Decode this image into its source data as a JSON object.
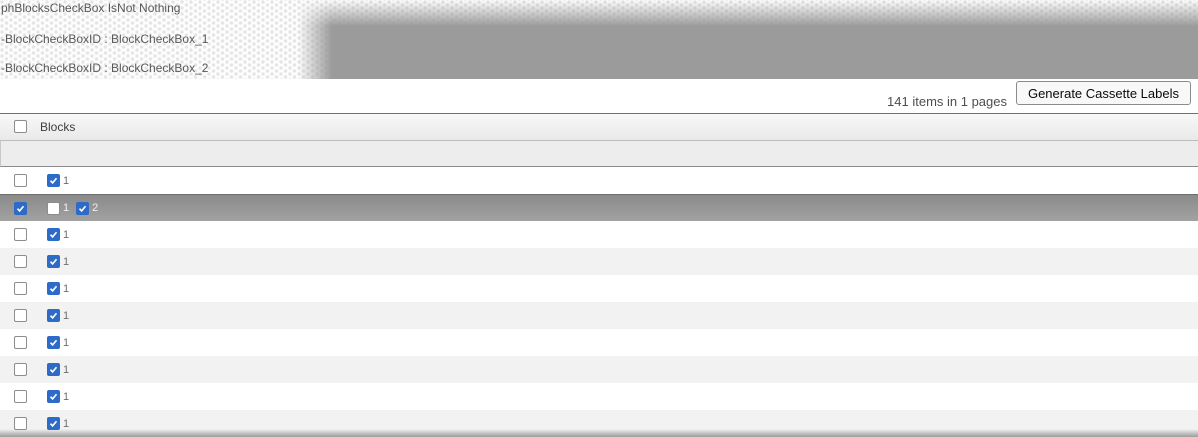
{
  "debug_panel": {
    "lines": [
      "phBlocksCheckBox IsNot Nothing",
      "-BlockCheckBoxID : BlockCheckBox_1",
      "-BlockCheckBoxID : BlockCheckBox_2"
    ]
  },
  "toolbar": {
    "items_summary": "141 items in 1 pages",
    "generate_button_label": "Generate Cassette Labels"
  },
  "grid": {
    "column_header": "Blocks",
    "select_all_checked": false,
    "rows": [
      {
        "row_selected": false,
        "row_checkbox_checked": false,
        "blocks": [
          {
            "checked": true,
            "label": "1"
          }
        ]
      },
      {
        "row_selected": true,
        "row_checkbox_checked": true,
        "blocks": [
          {
            "checked": false,
            "label": "1"
          },
          {
            "checked": true,
            "label": "2"
          }
        ]
      },
      {
        "row_selected": false,
        "row_checkbox_checked": false,
        "blocks": [
          {
            "checked": true,
            "label": "1"
          }
        ]
      },
      {
        "row_selected": false,
        "row_checkbox_checked": false,
        "blocks": [
          {
            "checked": true,
            "label": "1"
          }
        ]
      },
      {
        "row_selected": false,
        "row_checkbox_checked": false,
        "blocks": [
          {
            "checked": true,
            "label": "1"
          }
        ]
      },
      {
        "row_selected": false,
        "row_checkbox_checked": false,
        "blocks": [
          {
            "checked": true,
            "label": "1"
          }
        ]
      },
      {
        "row_selected": false,
        "row_checkbox_checked": false,
        "blocks": [
          {
            "checked": true,
            "label": "1"
          }
        ]
      },
      {
        "row_selected": false,
        "row_checkbox_checked": false,
        "blocks": [
          {
            "checked": true,
            "label": "1"
          }
        ]
      },
      {
        "row_selected": false,
        "row_checkbox_checked": false,
        "blocks": [
          {
            "checked": true,
            "label": "1"
          }
        ]
      },
      {
        "row_selected": false,
        "row_checkbox_checked": false,
        "blocks": [
          {
            "checked": true,
            "label": "1"
          }
        ]
      }
    ]
  },
  "colors": {
    "checkbox_blue": "#2e6bc8",
    "selected_row_gray": "#969696",
    "banner_gray": "#9b9b9b"
  }
}
